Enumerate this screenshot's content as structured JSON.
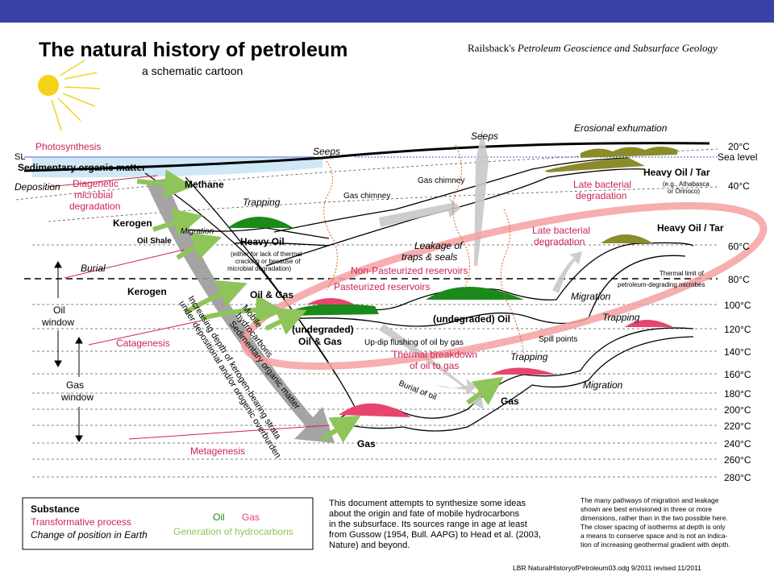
{
  "title": "The natural history of petroleum",
  "subtitle": "a schematic cartoon",
  "attribution": {
    "name": "Railsback's",
    "work": "Petroleum Geoscience and Subsurface Geology"
  },
  "surface": {
    "sl": "SL",
    "photosynthesis": "Photosynthesis",
    "sedimentary_organic_matter": "Sedimentary organic matter",
    "seeps_left": "Seeps",
    "seeps_right": "Seeps",
    "erosional_exhumation": "Erosional exhumation"
  },
  "temperatures": [
    "20°C",
    "40°C",
    "60°C",
    "80°C",
    "100°C",
    "120°C",
    "140°C",
    "160°C",
    "180°C",
    "200°C",
    "220°C",
    "240°C",
    "260°C",
    "280°C"
  ],
  "sea_level": "Sea level",
  "labels": {
    "deposition": "Deposition",
    "diagenetic": [
      "Diagenetic",
      "microbial",
      "degradation"
    ],
    "methane": "Methane",
    "trapping1": "Trapping",
    "kerogen1": "Kerogen",
    "migration1": "Migration",
    "oil_shale": "Oil Shale",
    "heavy_oil": "Heavy Oil",
    "heavy_oil_note": [
      "(either for lack of thermal",
      "cracking or because of",
      "microbial degradation)"
    ],
    "burial": "Burial",
    "kerogen2": "Kerogen",
    "oil_window": [
      "Oil",
      "window"
    ],
    "gas_window": [
      "Gas",
      "window"
    ],
    "catagenesis": "Catagenesis",
    "metagenesis": "Metagenesis",
    "oil_and_gas": "Oil & Gas",
    "mobile_hc": [
      "Mobile",
      "hydrocarbons"
    ],
    "sed_om_diag": [
      "Sedimentary organic matter"
    ],
    "increasing_depth": [
      "Increasing depth of kerogen-bearing strata",
      "under depositional and/or orogenic overburden"
    ],
    "undegraded_oil_gas": [
      "(undegraded)",
      "Oil & Gas"
    ],
    "undegraded_oil": "(undegraded) Oil",
    "gas_chimney_left": "Gas chimney",
    "gas_chimney_right": "Gas chimney",
    "leakage": [
      "Leakage of",
      "traps & seals"
    ],
    "non_pasteurized": "Non-Pasteurized reservoirs",
    "pasteurized": "Pasteurized reservoirs",
    "updip": "Up-dip flushing of oil by gas",
    "thermal_breakdown": [
      "Thermal breakdown",
      "of oil to gas"
    ],
    "burial_of_oil": "Burial of oil",
    "gas_lower": "Gas",
    "gas_mid": "Gas",
    "trapping2": "Trapping",
    "trapping3": "Trapping",
    "spill_points": "Spill points",
    "migration2": "Migration",
    "migration3": "Migration",
    "late_bacterial1": [
      "Late bacterial",
      "degradation"
    ],
    "late_bacterial2": [
      "Late bacterial",
      "degradation"
    ],
    "heavy_oil_tar1": "Heavy Oil / Tar",
    "heavy_oil_tar1_note": [
      "(e.g., Athabasca",
      "or Orinoco)"
    ],
    "heavy_oil_tar2": "Heavy Oil / Tar",
    "thermal_limit": [
      "Thermal limit of",
      "petroleum-degrading microbes"
    ]
  },
  "legend": {
    "substance": "Substance",
    "transformative": "Transformative process",
    "change_position": "Change of position in Earth",
    "oil": "Oil",
    "gas": "Gas",
    "generation": "Generation of hydrocarbons"
  },
  "notes": {
    "center": [
      "This document attempts to synthesize some ideas",
      "about the origin and fate of mobile hydrocarbons",
      "in the subsurface.  Its sources range in age at least",
      "from Gussow (1954, Bull. AAPG) to Head et al. (2003,",
      "Nature) and beyond."
    ],
    "right": [
      "The many pathways of migration and leakage",
      "shown are best envisioned in three or more",
      "dimensions, rather than in the two possible here.",
      "The closer spacing of isotherms at depth is only",
      "a means to conserve space and is not an indica-",
      "tion of increasing geothermal gradient with depth."
    ],
    "footer": "LBR  NaturalHistoryofPetroleum03.odg  9/2011 revised 11/2011"
  },
  "colors": {
    "topbar": "#3b3fa8",
    "oil": "#1a8a1a",
    "gas": "#e8456e",
    "tar": "#8b8b2a",
    "generation": "#8fc45a",
    "process": "#cc2255",
    "sea": "#cfe8f5",
    "sun": "#f5d21a"
  }
}
